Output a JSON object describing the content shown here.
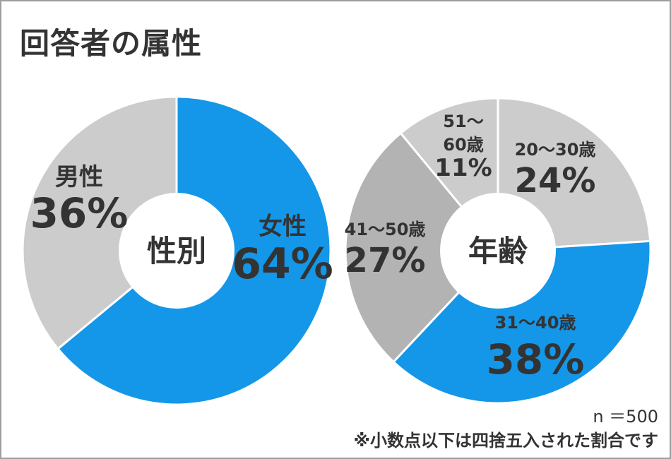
{
  "title": "回答者の属性",
  "chart_data": [
    {
      "type": "pie",
      "center_label": "性別",
      "slices": [
        {
          "label": "女性",
          "value": 64,
          "display": "64%",
          "color": "#1497e8"
        },
        {
          "label": "男性",
          "value": 36,
          "display": "36%",
          "color": "#cccccc"
        }
      ]
    },
    {
      "type": "pie",
      "center_label": "年齢",
      "slices": [
        {
          "label": "20〜30歳",
          "value": 24,
          "display": "24%",
          "color": "#cccccc"
        },
        {
          "label": "31〜40歳",
          "value": 38,
          "display": "38%",
          "color": "#1497e8"
        },
        {
          "label": "41〜50歳",
          "value": 27,
          "display": "27%",
          "color": "#b3b3b3"
        },
        {
          "label": "51〜60歳",
          "value": 11,
          "display": "11%",
          "color": "#cccccc"
        }
      ]
    }
  ],
  "sample_size": "n ＝500",
  "footnote": "※小数点以下は四捨五入された割合です"
}
